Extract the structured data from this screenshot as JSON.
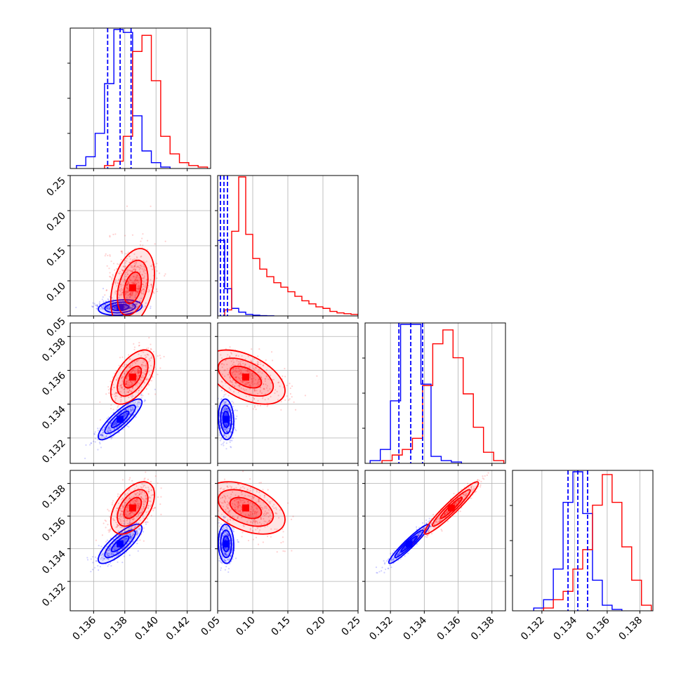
{
  "chart_data": {
    "type": "corner",
    "colors": {
      "blue": "#0000ff",
      "red": "#ff0000",
      "grid": "#b0b0b0"
    },
    "dims": [
      {
        "range": [
          0.1345,
          0.1435
        ],
        "ticks": [
          0.136,
          0.138,
          0.14,
          0.142
        ],
        "tick_labels": [
          "0.136",
          "0.138",
          "0.140",
          "0.142"
        ],
        "blue_quantiles": [
          0.1369,
          0.1377,
          0.1384
        ]
      },
      {
        "range": [
          0.05,
          0.25
        ],
        "ticks": [
          0.05,
          0.1,
          0.15,
          0.2,
          0.25
        ],
        "tick_labels": [
          "0.05",
          "0.10",
          "0.15",
          "0.20",
          "0.25"
        ],
        "blue_quantiles": [
          0.054,
          0.059,
          0.064
        ]
      },
      {
        "range": [
          0.1305,
          0.1388
        ],
        "ticks": [
          0.132,
          0.134,
          0.136,
          0.138
        ],
        "tick_labels": [
          "0.132",
          "0.134",
          "0.136",
          "0.138"
        ],
        "blue_quantiles": [
          0.1325,
          0.1332,
          0.1339
        ]
      },
      {
        "range": [
          0.1302,
          0.1388
        ],
        "ticks": [
          0.132,
          0.134,
          0.136,
          0.138
        ],
        "tick_labels": [
          "0.132",
          "0.134",
          "0.136",
          "0.138"
        ],
        "blue_quantiles": [
          0.1336,
          0.1342,
          0.1348
        ]
      }
    ],
    "series": [
      {
        "color": "blue",
        "mean": [
          0.1377,
          0.062,
          0.1331,
          0.1343
        ],
        "sd": [
          0.0007,
          0.0055,
          0.0006,
          0.0006
        ],
        "corr": [
          [
            1,
            0.2,
            0.85,
            0.8
          ],
          [
            0.2,
            1,
            -0.1,
            -0.05
          ],
          [
            0.85,
            -0.1,
            1,
            0.95
          ],
          [
            0.8,
            -0.05,
            0.95,
            1
          ]
        ],
        "hist": [
          {
            "bins": [
              0.1349,
              0.1355,
              0.1361,
              0.1367,
              0.1373,
              0.1379,
              0.1385,
              0.1391,
              0.1397,
              0.1403
            ],
            "counts": [
              0.02,
              0.08,
              0.24,
              0.58,
              0.95,
              0.93,
              0.36,
              0.12,
              0.04,
              0.01
            ]
          },
          {
            "bins": [
              0.05,
              0.06,
              0.07,
              0.08,
              0.09,
              0.1,
              0.11,
              0.12
            ],
            "counts": [
              0.5,
              0.18,
              0.05,
              0.025,
              0.01,
              0.005,
              0.002,
              0.001
            ]
          },
          {
            "bins": [
              0.1308,
              0.1314,
              0.132,
              0.1326,
              0.1332,
              0.1338,
              0.1344,
              0.135,
              0.1356
            ],
            "counts": [
              0.02,
              0.1,
              0.45,
              1.0,
              1.0,
              0.57,
              0.05,
              0.02,
              0.01
            ]
          },
          {
            "bins": [
              0.1315,
              0.1321,
              0.1327,
              0.1333,
              0.1339,
              0.1345,
              0.1351,
              0.1357,
              0.1363
            ],
            "counts": [
              0.02,
              0.08,
              0.3,
              0.78,
              1.0,
              0.7,
              0.22,
              0.04,
              0.01
            ]
          }
        ]
      },
      {
        "color": "red",
        "mean": [
          0.1385,
          0.09,
          0.1356,
          0.1365
        ],
        "sd": [
          0.0007,
          0.028,
          0.0008,
          0.0008
        ],
        "corr": [
          [
            1,
            0.35,
            0.55,
            0.5
          ],
          [
            0.35,
            1,
            -0.5,
            -0.45
          ],
          [
            0.55,
            -0.5,
            1,
            0.95
          ],
          [
            0.5,
            -0.45,
            0.95,
            1
          ]
        ],
        "hist": [
          {
            "bins": [
              0.1367,
              0.1373,
              0.1379,
              0.1385,
              0.1391,
              0.1397,
              0.1403,
              0.1409,
              0.1415,
              0.1421,
              0.1427
            ],
            "counts": [
              0.02,
              0.05,
              0.22,
              0.8,
              0.91,
              0.6,
              0.22,
              0.1,
              0.04,
              0.02,
              0.01
            ]
          },
          {
            "bins": [
              0.06,
              0.07,
              0.08,
              0.09,
              0.1,
              0.11,
              0.12,
              0.13,
              0.14,
              0.15,
              0.16,
              0.17,
              0.18,
              0.19,
              0.2,
              0.21,
              0.22,
              0.23,
              0.24
            ],
            "counts": [
              0.04,
              0.56,
              0.92,
              0.54,
              0.38,
              0.31,
              0.26,
              0.22,
              0.19,
              0.16,
              0.13,
              0.1,
              0.08,
              0.06,
              0.05,
              0.03,
              0.02,
              0.015,
              0.01
            ]
          },
          {
            "bins": [
              0.1315,
              0.1321,
              0.1327,
              0.1333,
              0.1339,
              0.1345,
              0.1351,
              0.1357,
              0.1363,
              0.1369,
              0.1375,
              0.1381
            ],
            "counts": [
              0.02,
              0.06,
              0.1,
              0.18,
              0.56,
              0.86,
              0.96,
              0.76,
              0.5,
              0.26,
              0.08,
              0.02
            ]
          },
          {
            "bins": [
              0.1321,
              0.1327,
              0.1333,
              0.1339,
              0.1345,
              0.1351,
              0.1357,
              0.1363,
              0.1369,
              0.1375,
              0.1381
            ],
            "counts": [
              0.02,
              0.08,
              0.14,
              0.3,
              0.44,
              0.76,
              0.98,
              0.78,
              0.46,
              0.22,
              0.04
            ]
          }
        ]
      }
    ]
  }
}
